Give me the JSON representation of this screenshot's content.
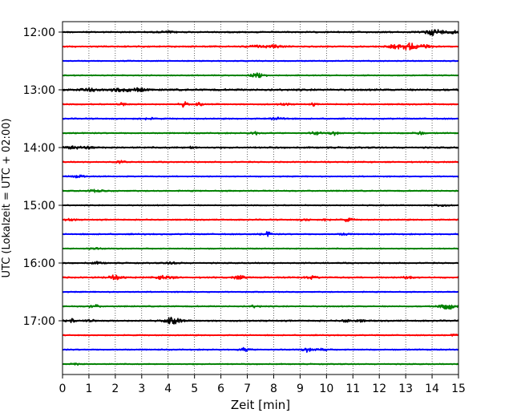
{
  "chart_data": {
    "type": "line",
    "title": "",
    "xlabel": "Zeit  [min]",
    "ylabel": "UTC (Lokalzeit = UTC + 02:00)",
    "xlim": [
      0,
      15
    ],
    "x_ticks": [
      0,
      1,
      2,
      3,
      4,
      5,
      6,
      7,
      8,
      9,
      10,
      11,
      12,
      13,
      14,
      15
    ],
    "y_ticks": [
      "12:00",
      "13:00",
      "14:00",
      "15:00",
      "16:00",
      "17:00"
    ],
    "x_grid": "dotted",
    "colors": [
      "#000000",
      "#ff0000",
      "#0000ff",
      "#008000"
    ],
    "traces": [
      {
        "start": "12:00",
        "color": "#000000",
        "noise": 0.9,
        "events": [
          [
            4.0,
            1.2,
            0.3
          ],
          [
            13.9,
            2.2,
            0.25
          ],
          [
            14.2,
            3.0,
            0.3
          ],
          [
            14.8,
            2.5,
            0.2
          ]
        ]
      },
      {
        "start": "12:15",
        "color": "#ff0000",
        "noise": 0.9,
        "events": [
          [
            7.3,
            1.5,
            0.3
          ],
          [
            8.0,
            2.0,
            0.3
          ],
          [
            12.6,
            2.0,
            0.3
          ],
          [
            13.2,
            4.5,
            0.35
          ],
          [
            13.7,
            2.0,
            0.2
          ]
        ]
      },
      {
        "start": "12:30",
        "color": "#0000ff",
        "noise": 0.7,
        "events": []
      },
      {
        "start": "12:45",
        "color": "#008000",
        "noise": 0.7,
        "events": [
          [
            7.4,
            2.5,
            0.3
          ]
        ]
      },
      {
        "start": "13:00",
        "color": "#000000",
        "noise": 1.2,
        "events": [
          [
            1.0,
            2.0,
            0.3
          ],
          [
            2.1,
            2.0,
            0.3
          ],
          [
            2.8,
            2.5,
            0.3
          ]
        ]
      },
      {
        "start": "13:15",
        "color": "#ff0000",
        "noise": 0.8,
        "events": [
          [
            2.3,
            1.5,
            0.2
          ],
          [
            4.6,
            3.0,
            0.15
          ],
          [
            5.2,
            2.0,
            0.12
          ],
          [
            8.4,
            1.5,
            0.2
          ],
          [
            9.5,
            1.8,
            0.1
          ]
        ]
      },
      {
        "start": "13:30",
        "color": "#0000ff",
        "noise": 0.8,
        "events": [
          [
            3.2,
            1.2,
            0.3
          ],
          [
            8.2,
            1.5,
            0.3
          ]
        ]
      },
      {
        "start": "13:45",
        "color": "#008000",
        "noise": 0.8,
        "events": [
          [
            7.3,
            2.0,
            0.2
          ],
          [
            9.6,
            2.0,
            0.2
          ],
          [
            10.3,
            2.0,
            0.2
          ],
          [
            13.5,
            2.0,
            0.2
          ]
        ]
      },
      {
        "start": "14:00",
        "color": "#000000",
        "noise": 1.0,
        "events": [
          [
            0.4,
            1.5,
            0.3
          ],
          [
            1.0,
            1.5,
            0.2
          ],
          [
            4.9,
            3.0,
            0.08
          ]
        ]
      },
      {
        "start": "14:15",
        "color": "#ff0000",
        "noise": 0.8,
        "events": [
          [
            2.2,
            1.2,
            0.2
          ]
        ]
      },
      {
        "start": "14:30",
        "color": "#0000ff",
        "noise": 0.7,
        "events": [
          [
            0.6,
            1.5,
            0.3
          ]
        ]
      },
      {
        "start": "14:45",
        "color": "#008000",
        "noise": 0.8,
        "events": [
          [
            1.3,
            1.5,
            0.3
          ]
        ]
      },
      {
        "start": "15:00",
        "color": "#000000",
        "noise": 0.7,
        "events": [
          [
            14.3,
            1.2,
            0.3
          ]
        ]
      },
      {
        "start": "15:15",
        "color": "#ff0000",
        "noise": 0.8,
        "events": [
          [
            0.3,
            1.5,
            0.2
          ],
          [
            9.2,
            1.2,
            0.2
          ],
          [
            10.0,
            2.5,
            0.12
          ],
          [
            10.8,
            2.0,
            0.2
          ]
        ]
      },
      {
        "start": "15:30",
        "color": "#0000ff",
        "noise": 0.8,
        "events": [
          [
            7.7,
            1.2,
            0.2
          ],
          [
            7.8,
            2.0,
            0.1
          ],
          [
            10.7,
            1.5,
            0.2
          ]
        ]
      },
      {
        "start": "15:45",
        "color": "#008000",
        "noise": 0.7,
        "events": [
          [
            1.2,
            1.0,
            0.3
          ]
        ]
      },
      {
        "start": "16:00",
        "color": "#000000",
        "noise": 0.8,
        "events": [
          [
            1.3,
            1.2,
            0.3
          ],
          [
            4.2,
            1.2,
            0.3
          ]
        ]
      },
      {
        "start": "16:15",
        "color": "#ff0000",
        "noise": 0.9,
        "events": [
          [
            2.0,
            2.5,
            0.3
          ],
          [
            3.9,
            2.5,
            0.3
          ],
          [
            6.7,
            2.5,
            0.2
          ],
          [
            9.4,
            1.5,
            0.3
          ],
          [
            13.1,
            2.0,
            0.2
          ]
        ]
      },
      {
        "start": "16:30",
        "color": "#0000ff",
        "noise": 0.7,
        "events": []
      },
      {
        "start": "16:45",
        "color": "#008000",
        "noise": 0.8,
        "events": [
          [
            1.2,
            2.0,
            0.2
          ],
          [
            7.3,
            1.5,
            0.2
          ],
          [
            14.6,
            4.0,
            0.3
          ]
        ]
      },
      {
        "start": "17:00",
        "color": "#000000",
        "noise": 0.9,
        "events": [
          [
            0.3,
            3.0,
            0.15
          ],
          [
            1.0,
            1.5,
            0.2
          ],
          [
            4.2,
            4.5,
            0.3
          ],
          [
            10.8,
            2.0,
            0.2
          ],
          [
            11.3,
            1.2,
            0.2
          ]
        ]
      },
      {
        "start": "17:15",
        "color": "#ff0000",
        "noise": 0.7,
        "events": [
          [
            14.9,
            1.2,
            0.2
          ]
        ]
      },
      {
        "start": "17:30",
        "color": "#0000ff",
        "noise": 0.8,
        "events": [
          [
            6.9,
            2.0,
            0.2
          ],
          [
            9.3,
            2.5,
            0.2
          ],
          [
            9.8,
            1.5,
            0.2
          ]
        ]
      },
      {
        "start": "17:45",
        "color": "#008000",
        "noise": 0.7,
        "events": [
          [
            0.5,
            1.0,
            0.2
          ]
        ]
      }
    ]
  }
}
